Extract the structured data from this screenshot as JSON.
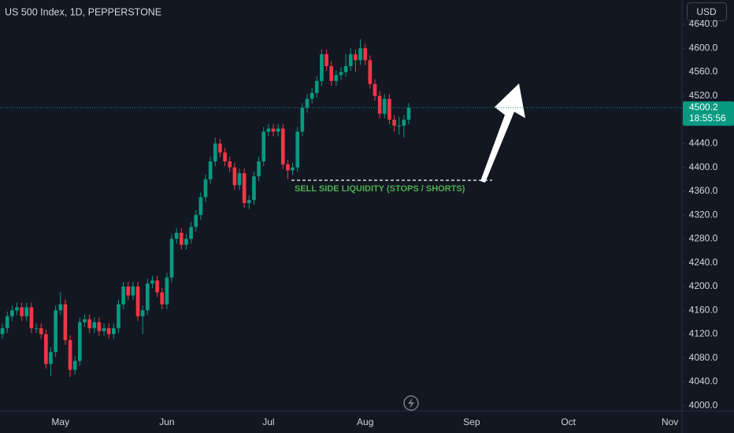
{
  "chart_data": {
    "type": "candlestick",
    "title": "US 500 Index, 1D, PEPPERSTONE",
    "currency": "USD",
    "annotation": "SELL SIDE LIQUIDITY (STOPS / SHORTS)",
    "last_price": 4500.2,
    "countdown": "18:55:56",
    "up_color": "#089981",
    "down_color": "#f23645",
    "categories": [
      null,
      null,
      null,
      null,
      null,
      null,
      null,
      null,
      null,
      null,
      null,
      null,
      "May",
      null,
      null,
      null,
      null,
      null,
      null,
      null,
      null,
      null,
      null,
      null,
      null,
      null,
      null,
      null,
      null,
      null,
      null,
      null,
      null,
      null,
      "Jun",
      null,
      null,
      null,
      null,
      null,
      null,
      null,
      null,
      null,
      null,
      null,
      null,
      null,
      null,
      null,
      null,
      null,
      null,
      null,
      null,
      "Jul",
      null,
      null,
      null,
      null,
      null,
      null,
      null,
      null,
      null,
      null,
      null,
      null,
      null,
      null,
      null,
      null,
      null,
      null,
      null,
      "Aug",
      null,
      null,
      null,
      null,
      null,
      null,
      null,
      null,
      null,
      null,
      null,
      null,
      null,
      null,
      null,
      null,
      null,
      null,
      null,
      null,
      null,
      "Sep",
      null,
      null,
      null,
      null,
      null,
      null,
      null,
      null,
      null,
      null,
      null,
      null,
      null,
      null,
      null,
      null,
      null,
      null,
      null,
      "Oct",
      null,
      null,
      null,
      null,
      null,
      null,
      null,
      null,
      null,
      null,
      null,
      null,
      null,
      null,
      null,
      null,
      null,
      null,
      null,
      null,
      "Nov",
      null,
      null
    ],
    "open": [
      4120,
      4130,
      4150,
      4160,
      4165,
      4150,
      4165,
      4130,
      4130,
      4120,
      4070,
      4090,
      4160,
      4170,
      4110,
      4060,
      4075,
      4140,
      4145,
      4130,
      4140,
      4125,
      4130,
      4120,
      4130,
      4170,
      4200,
      4185,
      4200,
      4150,
      4160,
      4205,
      4210,
      4190,
      4170,
      4215,
      4280,
      4290,
      4270,
      4280,
      4300,
      4320,
      4350,
      4380,
      4410,
      4440,
      4425,
      4410,
      4400,
      4370,
      4390,
      4340,
      4345,
      4385,
      4410,
      4460,
      4465,
      4460,
      4465,
      4405,
      4395,
      4400,
      4460,
      4500,
      4515,
      4525,
      4545,
      4590,
      4570,
      4545,
      4555,
      4560,
      4570,
      4590,
      4580,
      4600,
      4580,
      4540,
      4520,
      4490,
      4515,
      4480,
      4470,
      4470,
      4480,
      null,
      null,
      null,
      null,
      null,
      null,
      null,
      null,
      null,
      null,
      null,
      null,
      null,
      null,
      null,
      null,
      null,
      null,
      null,
      null,
      null,
      null,
      null,
      null,
      null,
      null,
      null,
      null,
      null,
      null,
      null,
      null,
      null,
      null,
      null,
      null,
      null,
      null,
      null,
      null,
      null,
      null,
      null,
      null,
      null,
      null,
      null,
      null,
      null,
      null,
      null,
      null,
      null,
      null,
      null,
      null
    ],
    "high": [
      4138,
      4158,
      4168,
      4173,
      4173,
      4173,
      4173,
      4138,
      4138,
      4128,
      4098,
      4168,
      4190,
      4178,
      4118,
      4083,
      4148,
      4153,
      4153,
      4148,
      4148,
      4138,
      4138,
      4138,
      4178,
      4208,
      4208,
      4208,
      4208,
      4168,
      4213,
      4218,
      4218,
      4198,
      4223,
      4288,
      4298,
      4298,
      4288,
      4308,
      4328,
      4358,
      4388,
      4418,
      4450,
      4448,
      4433,
      4418,
      4408,
      4398,
      4398,
      4353,
      4393,
      4418,
      4468,
      4473,
      4473,
      4473,
      4473,
      4413,
      4408,
      4468,
      4508,
      4523,
      4533,
      4553,
      4598,
      4598,
      4578,
      4563,
      4568,
      4590,
      4600,
      4598,
      4615,
      4608,
      4588,
      4548,
      4528,
      4523,
      4523,
      4488,
      4485,
      4488,
      4508,
      null,
      null,
      null,
      null,
      null,
      null,
      null,
      null,
      null,
      null,
      null,
      null,
      null,
      null,
      null,
      null,
      null,
      null,
      null,
      null,
      null,
      null,
      null,
      null,
      null,
      null,
      null,
      null,
      null,
      null,
      null,
      null,
      null,
      null,
      null,
      null,
      null,
      null,
      null,
      null,
      null,
      null,
      null,
      null,
      null,
      null,
      null,
      null,
      null,
      null,
      null,
      null,
      null,
      null,
      null,
      null
    ],
    "low": [
      4112,
      4122,
      4142,
      4152,
      4142,
      4142,
      4122,
      4122,
      4112,
      4062,
      4050,
      4082,
      4152,
      4102,
      4048,
      4052,
      4067,
      4132,
      4122,
      4122,
      4117,
      4117,
      4112,
      4112,
      4122,
      4162,
      4177,
      4177,
      4142,
      4120,
      4152,
      4197,
      4182,
      4162,
      4162,
      4207,
      4272,
      4262,
      4262,
      4272,
      4292,
      4312,
      4342,
      4372,
      4402,
      4417,
      4402,
      4392,
      4362,
      4362,
      4332,
      4330,
      4337,
      4377,
      4402,
      4452,
      4452,
      4452,
      4397,
      4380,
      4387,
      4392,
      4452,
      4492,
      4507,
      4517,
      4537,
      4562,
      4537,
      4537,
      4547,
      4552,
      4562,
      4560,
      4572,
      4572,
      4532,
      4512,
      4482,
      4482,
      4472,
      4460,
      4455,
      4450,
      4472,
      null,
      null,
      null,
      null,
      null,
      null,
      null,
      null,
      null,
      null,
      null,
      null,
      null,
      null,
      null,
      null,
      null,
      null,
      null,
      null,
      null,
      null,
      null,
      null,
      null,
      null,
      null,
      null,
      null,
      null,
      null,
      null,
      null,
      null,
      null,
      null,
      null,
      null,
      null,
      null,
      null,
      null,
      null,
      null,
      null,
      null,
      null,
      null,
      null,
      null,
      null,
      null,
      null,
      null,
      null,
      null
    ],
    "close": [
      4130,
      4150,
      4160,
      4165,
      4150,
      4165,
      4130,
      4130,
      4120,
      4070,
      4090,
      4160,
      4170,
      4110,
      4060,
      4075,
      4140,
      4145,
      4130,
      4140,
      4125,
      4130,
      4120,
      4130,
      4170,
      4200,
      4185,
      4200,
      4150,
      4160,
      4205,
      4210,
      4190,
      4170,
      4215,
      4280,
      4290,
      4270,
      4280,
      4300,
      4320,
      4350,
      4380,
      4410,
      4440,
      4425,
      4410,
      4400,
      4370,
      4390,
      4340,
      4345,
      4385,
      4410,
      4460,
      4465,
      4460,
      4465,
      4405,
      4395,
      4400,
      4460,
      4500,
      4515,
      4525,
      4545,
      4590,
      4570,
      4545,
      4555,
      4560,
      4570,
      4590,
      4580,
      4600,
      4580,
      4540,
      4520,
      4490,
      4515,
      4480,
      4470,
      4470,
      4480,
      4500,
      null,
      null,
      null,
      null,
      null,
      null,
      null,
      null,
      null,
      null,
      null,
      null,
      null,
      null,
      null,
      null,
      null,
      null,
      null,
      null,
      null,
      null,
      null,
      null,
      null,
      null,
      null,
      null,
      null,
      null,
      null,
      null,
      null,
      null,
      null,
      null,
      null,
      null,
      null,
      null,
      null,
      null,
      null,
      null,
      null,
      null,
      null,
      null,
      null,
      null,
      null,
      null,
      null,
      null,
      null,
      null
    ],
    "ylim": [
      3991,
      4681
    ],
    "yticks": [
      {
        "value": 4000,
        "label": "4000.0"
      },
      {
        "value": 4040,
        "label": "4040.0"
      },
      {
        "value": 4080,
        "label": "4080.0"
      },
      {
        "value": 4120,
        "label": "4120.0"
      },
      {
        "value": 4160,
        "label": "4160.0"
      },
      {
        "value": 4200,
        "label": "4200.0"
      },
      {
        "value": 4240,
        "label": "4240.0"
      },
      {
        "value": 4280,
        "label": "4280.0"
      },
      {
        "value": 4320,
        "label": "4320.0"
      },
      {
        "value": 4360,
        "label": "4360.0"
      },
      {
        "value": 4400,
        "label": "4400.0"
      },
      {
        "value": 4440,
        "label": "4440.0"
      },
      {
        "value": 4480,
        "label": "4480.0"
      },
      {
        "value": 4520,
        "label": "4520.0"
      },
      {
        "value": 4560,
        "label": "4560.0"
      },
      {
        "value": 4600,
        "label": "4600.0"
      },
      {
        "value": 4640,
        "label": "4640.0"
      }
    ],
    "grid": false
  }
}
